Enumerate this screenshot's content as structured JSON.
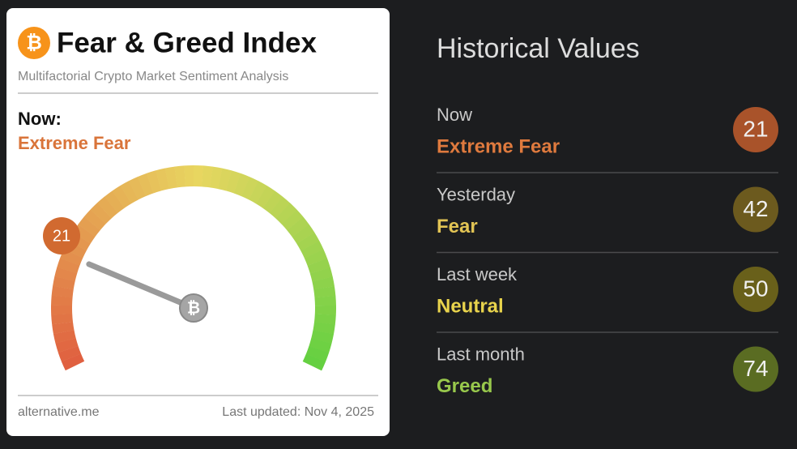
{
  "widget": {
    "title": "Fear & Greed Index",
    "subtitle": "Multifactorial Crypto Market Sentiment Analysis",
    "now_label": "Now:",
    "now_class": "Extreme Fear",
    "now_color": "#d9743a",
    "gauge": {
      "value": 21,
      "range": [
        0,
        100
      ],
      "color": "#d16a30"
    },
    "footer": {
      "source": "alternative.me",
      "updated": "Last updated: Nov 4, 2025"
    }
  },
  "historical": {
    "title": "Historical Values",
    "rows": [
      {
        "period": "Now",
        "class": "Extreme Fear",
        "value": 21,
        "text_color": "#df7a3e",
        "circle_color": "#a9532a"
      },
      {
        "period": "Yesterday",
        "class": "Fear",
        "value": 42,
        "text_color": "#e2c454",
        "circle_color": "#6c5a1e"
      },
      {
        "period": "Last week",
        "class": "Neutral",
        "value": 50,
        "text_color": "#e8d34c",
        "circle_color": "#69601a"
      },
      {
        "period": "Last month",
        "class": "Greed",
        "value": 74,
        "text_color": "#98c84c",
        "circle_color": "#5a6c22"
      }
    ]
  }
}
